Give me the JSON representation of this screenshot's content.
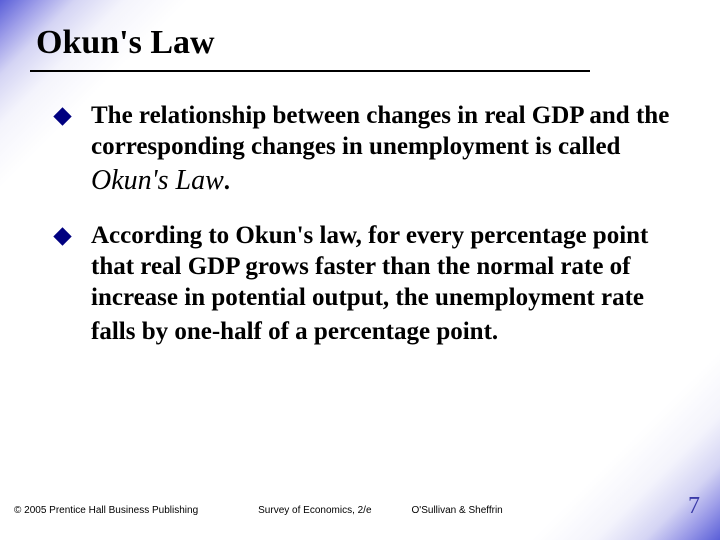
{
  "title": "Okun's Law",
  "bullets": [
    {
      "pre": "The relationship between changes in real GDP and the corresponding changes in unemployment is called ",
      "term": "Okun's Law",
      "post": "."
    },
    {
      "pre": "According to Okun's law, for every percentage point that real GDP grows faster than the normal rate of increase in potential output, the unemployment rate falls by one-half of a percentage point.",
      "term": "",
      "post": ""
    }
  ],
  "footer": {
    "copyright": "© 2005 Prentice Hall Business Publishing",
    "book": "Survey of Economics, 2/e",
    "authors": "O'Sullivan & Sheffrin",
    "page": "7"
  },
  "colors": {
    "bullet_marker": "#000080",
    "page_number": "#3a3aa8",
    "gradient_edge": "#5a5fd8"
  }
}
